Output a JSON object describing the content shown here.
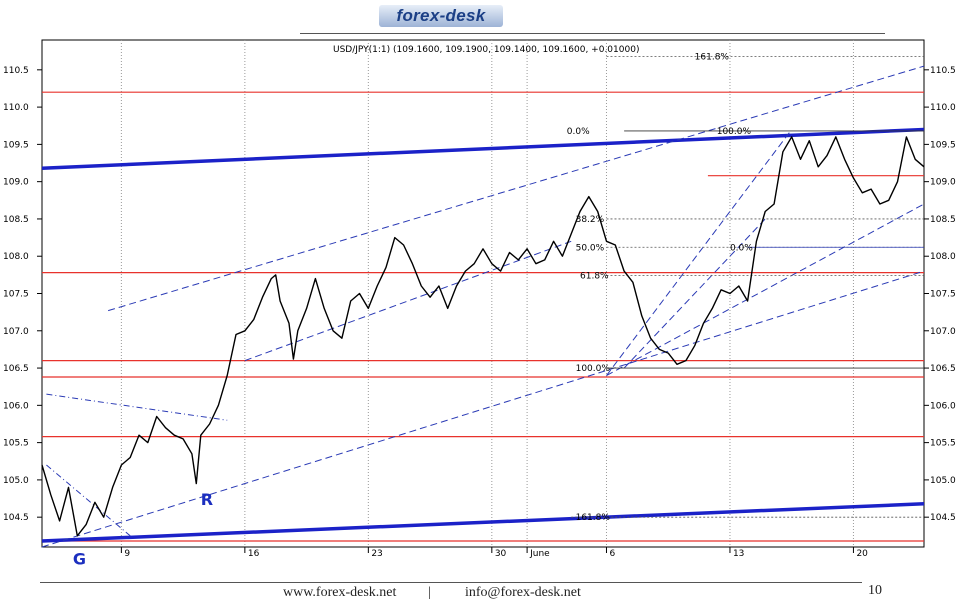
{
  "header": {
    "logo_text": "forex-desk"
  },
  "footer": {
    "website": "www.forex-desk.net",
    "separator": "|",
    "email": "info@forex-desk.net",
    "page_number": "10"
  },
  "chart_data": {
    "type": "line",
    "title": "USD/JPY(1:1) (109.1600, 109.1900, 109.1400, 109.1600, +0.01000)",
    "instrument": "USD/JPY",
    "ylim": [
      104.1,
      110.9
    ],
    "y_ticks": [
      "110.5",
      "110.0",
      "109.5",
      "109.0",
      "108.5",
      "108.0",
      "107.5",
      "107.0",
      "106.5",
      "106.0",
      "105.5",
      "105.0",
      "104.5"
    ],
    "x_range": [
      0,
      100
    ],
    "x_ticks": [
      {
        "label": "9",
        "x": 9
      },
      {
        "label": "16",
        "x": 23
      },
      {
        "label": "23",
        "x": 37
      },
      {
        "label": "30",
        "x": 51
      },
      {
        "label": "June",
        "x": 55
      },
      {
        "label": "6",
        "x": 64
      },
      {
        "label": "13",
        "x": 78
      },
      {
        "label": "20",
        "x": 92
      }
    ],
    "grid": "vertical-dotted",
    "price_series": {
      "name": "USD/JPY",
      "color": "#000000",
      "points": [
        [
          0,
          105.2
        ],
        [
          1,
          104.8
        ],
        [
          2,
          104.45
        ],
        [
          3,
          104.9
        ],
        [
          4,
          104.25
        ],
        [
          5,
          104.4
        ],
        [
          6,
          104.7
        ],
        [
          7,
          104.5
        ],
        [
          8,
          104.9
        ],
        [
          9,
          105.2
        ],
        [
          10,
          105.3
        ],
        [
          11,
          105.6
        ],
        [
          12,
          105.5
        ],
        [
          13,
          105.85
        ],
        [
          14,
          105.7
        ],
        [
          15,
          105.6
        ],
        [
          16,
          105.55
        ],
        [
          17,
          105.35
        ],
        [
          17.5,
          104.95
        ],
        [
          18,
          105.6
        ],
        [
          19,
          105.75
        ],
        [
          20,
          106.0
        ],
        [
          21,
          106.4
        ],
        [
          22,
          106.95
        ],
        [
          23,
          107.0
        ],
        [
          24,
          107.15
        ],
        [
          25,
          107.45
        ],
        [
          26,
          107.7
        ],
        [
          26.5,
          107.75
        ],
        [
          27,
          107.4
        ],
        [
          28,
          107.1
        ],
        [
          28.5,
          106.62
        ],
        [
          29,
          107.0
        ],
        [
          30,
          107.3
        ],
        [
          31,
          107.7
        ],
        [
          32,
          107.3
        ],
        [
          33,
          107.0
        ],
        [
          34,
          106.9
        ],
        [
          35,
          107.4
        ],
        [
          36,
          107.5
        ],
        [
          37,
          107.3
        ],
        [
          38,
          107.6
        ],
        [
          39,
          107.85
        ],
        [
          40,
          108.25
        ],
        [
          41,
          108.15
        ],
        [
          42,
          107.9
        ],
        [
          43,
          107.6
        ],
        [
          44,
          107.45
        ],
        [
          45,
          107.6
        ],
        [
          46,
          107.3
        ],
        [
          47,
          107.6
        ],
        [
          48,
          107.8
        ],
        [
          49,
          107.9
        ],
        [
          50,
          108.1
        ],
        [
          51,
          107.9
        ],
        [
          52,
          107.8
        ],
        [
          53,
          108.05
        ],
        [
          54,
          107.95
        ],
        [
          55,
          108.1
        ],
        [
          56,
          107.9
        ],
        [
          57,
          107.95
        ],
        [
          58,
          108.2
        ],
        [
          59,
          108.0
        ],
        [
          60,
          108.3
        ],
        [
          61,
          108.6
        ],
        [
          62,
          108.8
        ],
        [
          63,
          108.6
        ],
        [
          64,
          108.2
        ],
        [
          65,
          108.15
        ],
        [
          66,
          107.8
        ],
        [
          67,
          107.65
        ],
        [
          68,
          107.2
        ],
        [
          69,
          106.9
        ],
        [
          70,
          106.75
        ],
        [
          71,
          106.7
        ],
        [
          72,
          106.55
        ],
        [
          73,
          106.6
        ],
        [
          74,
          106.8
        ],
        [
          75,
          107.1
        ],
        [
          76,
          107.3
        ],
        [
          77,
          107.55
        ],
        [
          78,
          107.5
        ],
        [
          79,
          107.6
        ],
        [
          80,
          107.4
        ],
        [
          81,
          108.2
        ],
        [
          82,
          108.6
        ],
        [
          83,
          108.7
        ],
        [
          84,
          109.4
        ],
        [
          85,
          109.6
        ],
        [
          86,
          109.3
        ],
        [
          87,
          109.55
        ],
        [
          88,
          109.2
        ],
        [
          89,
          109.35
        ],
        [
          90,
          109.6
        ],
        [
          91,
          109.3
        ],
        [
          92,
          109.05
        ],
        [
          93,
          108.85
        ],
        [
          94,
          108.9
        ],
        [
          95,
          108.7
        ],
        [
          96,
          108.75
        ],
        [
          97,
          109.0
        ],
        [
          98,
          109.6
        ],
        [
          99,
          109.3
        ],
        [
          100,
          109.2
        ]
      ]
    },
    "horizontal_levels": [
      110.2,
      109.08,
      107.78,
      106.6,
      106.38,
      105.58,
      104.18
    ],
    "fibonacci_labels": [
      {
        "text": "161.8%",
        "y": 110.68
      },
      {
        "text": "0.0%",
        "y": 109.68
      },
      {
        "text": "100.0%",
        "y": 109.68
      },
      {
        "text": "38.2%",
        "y": 108.5
      },
      {
        "text": "50.0%",
        "y": 108.12
      },
      {
        "text": "0.0%",
        "y": 108.12
      },
      {
        "text": "61.8%",
        "y": 107.74
      },
      {
        "text": "100.0%",
        "y": 106.5
      },
      {
        "text": "161.8%",
        "y": 104.5
      }
    ],
    "annotations": [
      {
        "text": "R",
        "x": 18,
        "y": 104.8
      },
      {
        "text": "G",
        "x": 3.5,
        "y": 104.0
      }
    ],
    "colors": {
      "level_line": "#e8322c",
      "trend_line": "#1b22c8",
      "price": "#000000",
      "grid": "#9a9a9a"
    }
  }
}
